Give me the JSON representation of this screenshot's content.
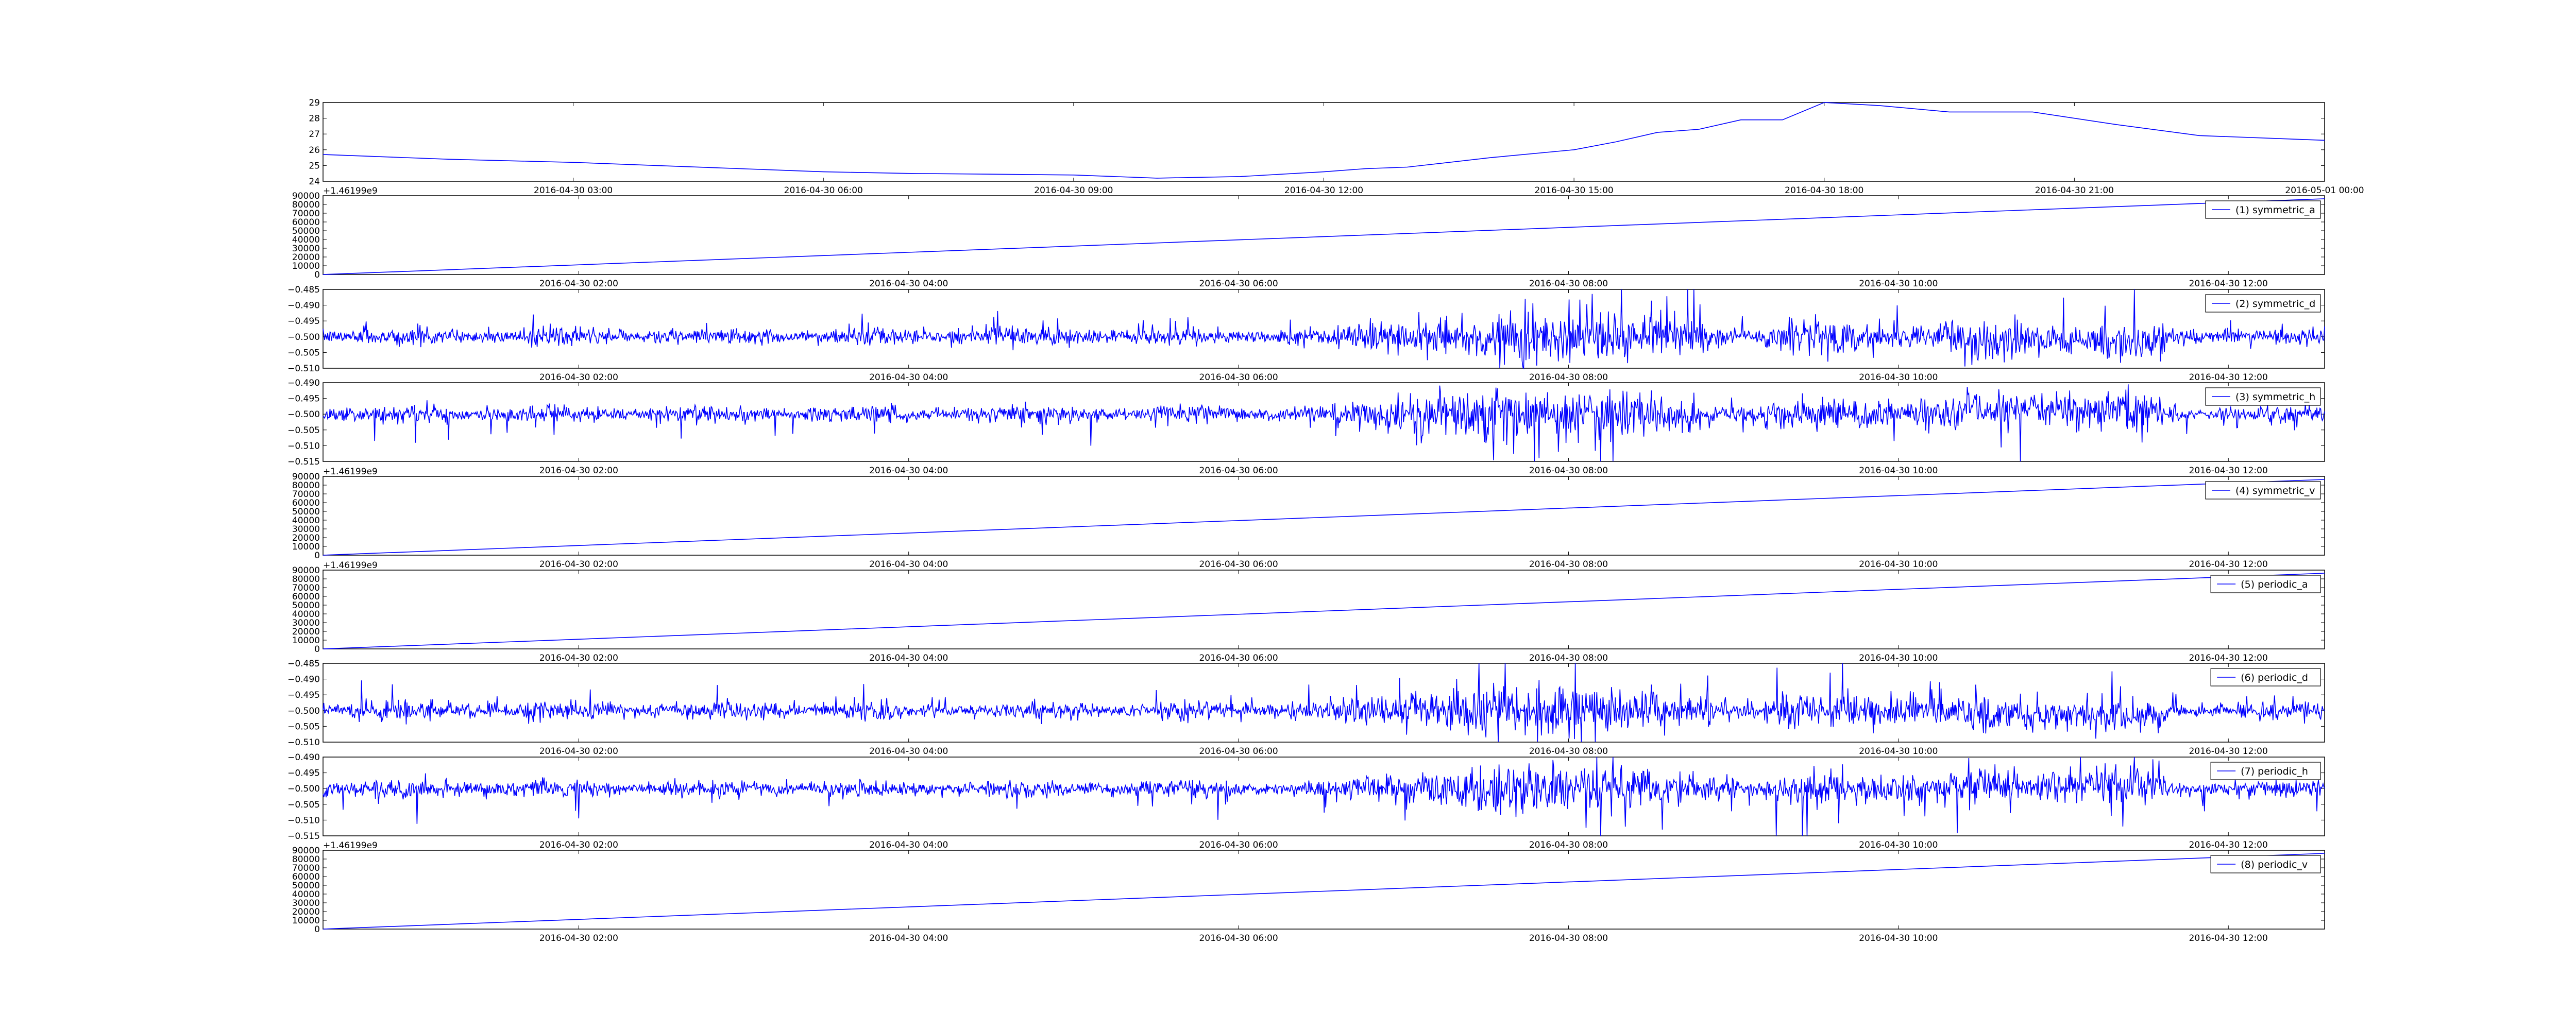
{
  "figure": {
    "background": "#ffffff",
    "line_color": "#0000ff"
  },
  "chart_data": [
    {
      "type": "line",
      "id": "temperature",
      "color": "#0000ff",
      "y_range": [
        24,
        29
      ],
      "yticks": [
        "24",
        "25",
        "26",
        "27",
        "28",
        "29"
      ],
      "xticks": [
        "2016-04-30 03:00",
        "2016-04-30 06:00",
        "2016-04-30 09:00",
        "2016-04-30 12:00",
        "2016-04-30 15:00",
        "2016-04-30 18:00",
        "2016-04-30 21:00",
        "2016-05-01 00:00"
      ],
      "x_range": [
        "2016-04-30 00:00",
        "2016-05-01 00:00"
      ],
      "x": [
        "2016-04-30 00:00",
        "2016-04-30 01:30",
        "2016-04-30 03:00",
        "2016-04-30 04:00",
        "2016-04-30 05:00",
        "2016-04-30 06:00",
        "2016-04-30 07:00",
        "2016-04-30 08:00",
        "2016-04-30 09:00",
        "2016-04-30 10:00",
        "2016-04-30 11:00",
        "2016-04-30 12:00",
        "2016-04-30 12:30",
        "2016-04-30 13:00",
        "2016-04-30 14:00",
        "2016-04-30 15:00",
        "2016-04-30 15:30",
        "2016-04-30 16:00",
        "2016-04-30 16:30",
        "2016-04-30 17:00",
        "2016-04-30 17:30",
        "2016-04-30 18:00",
        "2016-04-30 18:40",
        "2016-04-30 19:30",
        "2016-04-30 20:30",
        "2016-04-30 21:30",
        "2016-04-30 22:30",
        "2016-05-01 00:00"
      ],
      "values": [
        25.7,
        25.4,
        25.2,
        25.0,
        24.8,
        24.6,
        24.5,
        24.45,
        24.4,
        24.2,
        24.3,
        24.6,
        24.8,
        24.9,
        25.5,
        26.0,
        26.5,
        27.1,
        27.3,
        27.9,
        27.9,
        29.0,
        28.8,
        28.4,
        28.4,
        27.6,
        26.9,
        26.6
      ],
      "legend": null
    },
    {
      "type": "line",
      "id": "symmetric_a",
      "color": "#0000ff",
      "offset_label": "+1.46199e9",
      "y_range": [
        0,
        90000
      ],
      "yticks": [
        "0",
        "10000",
        "20000",
        "30000",
        "40000",
        "50000",
        "60000",
        "70000",
        "80000",
        "90000"
      ],
      "xticks": [
        "2016-04-30 02:00",
        "2016-04-30 04:00",
        "2016-04-30 06:00",
        "2016-04-30 08:00",
        "2016-04-30 10:00",
        "2016-04-30 12:00"
      ],
      "x_range": [
        "2016-04-30 00:27",
        "2016-04-30 12:35"
      ],
      "x": [
        "2016-04-30 00:27",
        "2016-04-30 12:35"
      ],
      "values": [
        0,
        86500
      ],
      "legend": "(1) symmetric_a"
    },
    {
      "type": "line",
      "id": "symmetric_d",
      "color": "#0000ff",
      "y_range": [
        -0.51,
        -0.485
      ],
      "yticks": [
        "−0.510",
        "−0.505",
        "−0.500",
        "−0.495",
        "−0.490",
        "−0.485"
      ],
      "xticks": [
        "2016-04-30 02:00",
        "2016-04-30 04:00",
        "2016-04-30 06:00",
        "2016-04-30 08:00",
        "2016-04-30 10:00",
        "2016-04-30 12:00"
      ],
      "x_range": [
        "2016-04-30 00:27",
        "2016-04-30 12:35"
      ],
      "baseline": -0.5,
      "noise_profile": "high_frequency",
      "legend": "(2) symmetric_d"
    },
    {
      "type": "line",
      "id": "symmetric_h",
      "color": "#0000ff",
      "y_range": [
        -0.515,
        -0.49
      ],
      "yticks": [
        "−0.515",
        "−0.510",
        "−0.505",
        "−0.500",
        "−0.495",
        "−0.490"
      ],
      "xticks": [
        "2016-04-30 02:00",
        "2016-04-30 04:00",
        "2016-04-30 06:00",
        "2016-04-30 08:00",
        "2016-04-30 10:00",
        "2016-04-30 12:00"
      ],
      "x_range": [
        "2016-04-30 00:27",
        "2016-04-30 12:35"
      ],
      "baseline": -0.5,
      "noise_profile": "high_frequency",
      "legend": "(3) symmetric_h"
    },
    {
      "type": "line",
      "id": "symmetric_v",
      "color": "#0000ff",
      "offset_label": "+1.46199e9",
      "y_range": [
        0,
        90000
      ],
      "yticks": [
        "0",
        "10000",
        "20000",
        "30000",
        "40000",
        "50000",
        "60000",
        "70000",
        "80000",
        "90000"
      ],
      "xticks": [
        "2016-04-30 02:00",
        "2016-04-30 04:00",
        "2016-04-30 06:00",
        "2016-04-30 08:00",
        "2016-04-30 10:00",
        "2016-04-30 12:00"
      ],
      "x_range": [
        "2016-04-30 00:27",
        "2016-04-30 12:35"
      ],
      "x": [
        "2016-04-30 00:27",
        "2016-04-30 12:35"
      ],
      "values": [
        0,
        86500
      ],
      "legend": "(4) symmetric_v"
    },
    {
      "type": "line",
      "id": "periodic_a",
      "color": "#0000ff",
      "offset_label": "+1.46199e9",
      "y_range": [
        0,
        90000
      ],
      "yticks": [
        "0",
        "10000",
        "20000",
        "30000",
        "40000",
        "50000",
        "60000",
        "70000",
        "80000",
        "90000"
      ],
      "xticks": [
        "2016-04-30 02:00",
        "2016-04-30 04:00",
        "2016-04-30 06:00",
        "2016-04-30 08:00",
        "2016-04-30 10:00",
        "2016-04-30 12:00"
      ],
      "x_range": [
        "2016-04-30 00:27",
        "2016-04-30 12:35"
      ],
      "x": [
        "2016-04-30 00:27",
        "2016-04-30 12:35"
      ],
      "values": [
        0,
        86500
      ],
      "legend": "(5) periodic_a"
    },
    {
      "type": "line",
      "id": "periodic_d",
      "color": "#0000ff",
      "y_range": [
        -0.51,
        -0.485
      ],
      "yticks": [
        "−0.510",
        "−0.505",
        "−0.500",
        "−0.495",
        "−0.490",
        "−0.485"
      ],
      "xticks": [
        "2016-04-30 02:00",
        "2016-04-30 04:00",
        "2016-04-30 06:00",
        "2016-04-30 08:00",
        "2016-04-30 10:00",
        "2016-04-30 12:00"
      ],
      "x_range": [
        "2016-04-30 00:27",
        "2016-04-30 12:35"
      ],
      "baseline": -0.5,
      "noise_profile": "high_frequency",
      "legend": "(6) periodic_d"
    },
    {
      "type": "line",
      "id": "periodic_h",
      "color": "#0000ff",
      "y_range": [
        -0.515,
        -0.49
      ],
      "yticks": [
        "−0.515",
        "−0.510",
        "−0.505",
        "−0.500",
        "−0.495",
        "−0.490"
      ],
      "xticks": [
        "2016-04-30 02:00",
        "2016-04-30 04:00",
        "2016-04-30 06:00",
        "2016-04-30 08:00",
        "2016-04-30 10:00",
        "2016-04-30 12:00"
      ],
      "x_range": [
        "2016-04-30 00:27",
        "2016-04-30 12:35"
      ],
      "baseline": -0.5,
      "noise_profile": "high_frequency",
      "legend": "(7) periodic_h"
    },
    {
      "type": "line",
      "id": "periodic_v",
      "color": "#0000ff",
      "offset_label": "+1.46199e9",
      "y_range": [
        0,
        90000
      ],
      "yticks": [
        "0",
        "10000",
        "20000",
        "30000",
        "40000",
        "50000",
        "60000",
        "70000",
        "80000",
        "90000"
      ],
      "xticks": [
        "2016-04-30 02:00",
        "2016-04-30 04:00",
        "2016-04-30 06:00",
        "2016-04-30 08:00",
        "2016-04-30 10:00",
        "2016-04-30 12:00"
      ],
      "x_range": [
        "2016-04-30 00:27",
        "2016-04-30 12:35"
      ],
      "x": [
        "2016-04-30 00:27",
        "2016-04-30 12:35"
      ],
      "values": [
        0,
        86500
      ],
      "legend": "(8) periodic_v"
    }
  ]
}
